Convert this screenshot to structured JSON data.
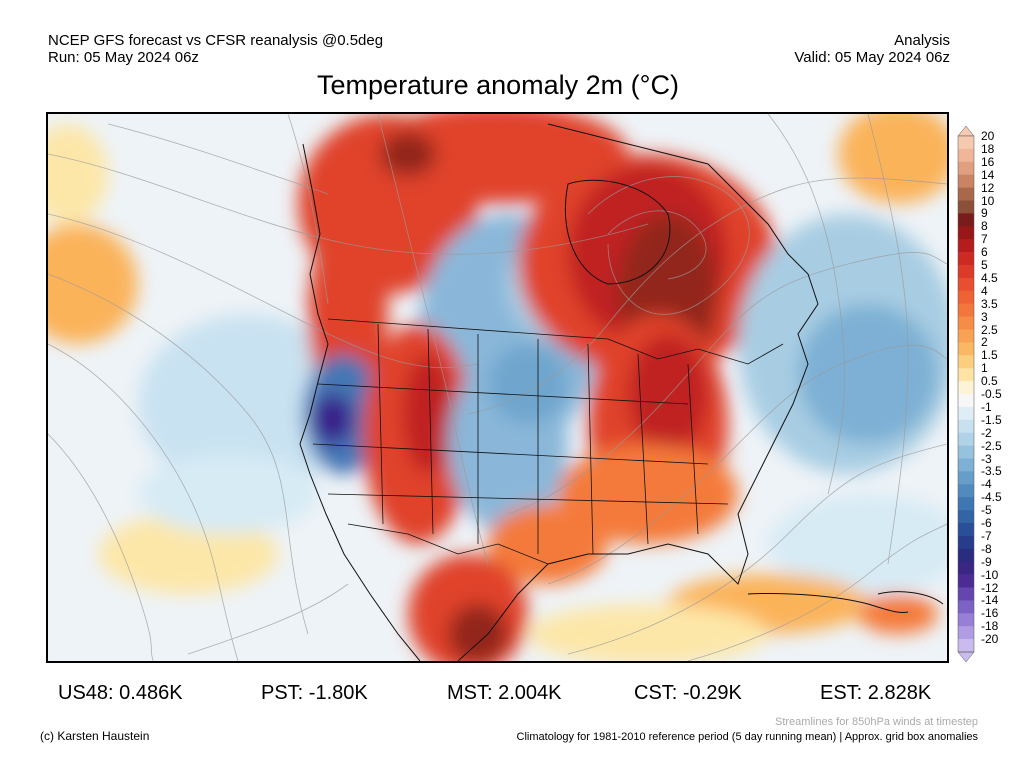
{
  "header": {
    "left_line1": "NCEP GFS forecast vs CFSR reanalysis @0.5deg",
    "left_line2": "Run: 05 May 2024 06z",
    "right_line1": "Analysis",
    "right_line2": "Valid: 05 May 2024 06z",
    "title": "Temperature anomaly 2m (°C)"
  },
  "map": {
    "region": "North America",
    "warm_colors": [
      "#fde7a8",
      "#fbb35a",
      "#f47a3a",
      "#e0432a",
      "#c02420",
      "#93251f",
      "#7c3f2a"
    ],
    "cool_colors": [
      "#d7ebf5",
      "#a8cde3",
      "#6fa5cd",
      "#4577b5",
      "#2a4596",
      "#3a1f8a"
    ]
  },
  "colorbar": {
    "levels": [
      {
        "label": "20",
        "color": "#f6c9b1"
      },
      {
        "label": "18",
        "color": "#efb69a"
      },
      {
        "label": "16",
        "color": "#e0a07f"
      },
      {
        "label": "14",
        "color": "#c98463"
      },
      {
        "label": "12",
        "color": "#a9684a"
      },
      {
        "label": "10",
        "color": "#8a5038"
      },
      {
        "label": "9",
        "color": "#7a1c1c"
      },
      {
        "label": "8",
        "color": "#981818"
      },
      {
        "label": "7",
        "color": "#b51d1c"
      },
      {
        "label": "6",
        "color": "#cc2a22"
      },
      {
        "label": "5",
        "color": "#dd3b2a"
      },
      {
        "label": "4.5",
        "color": "#e84e30"
      },
      {
        "label": "4",
        "color": "#ef6236"
      },
      {
        "label": "3.5",
        "color": "#f3763d"
      },
      {
        "label": "3",
        "color": "#f58c47"
      },
      {
        "label": "2.5",
        "color": "#f8a255"
      },
      {
        "label": "2",
        "color": "#fab865"
      },
      {
        "label": "1.5",
        "color": "#fcce7f"
      },
      {
        "label": "1",
        "color": "#fde3a4"
      },
      {
        "label": "0.5",
        "color": "#fdf4d8"
      },
      {
        "label": "-0.5",
        "color": "#f7f7f7"
      },
      {
        "label": "-1",
        "color": "#deedf6"
      },
      {
        "label": "-1.5",
        "color": "#c7e1f0"
      },
      {
        "label": "-2",
        "color": "#b0d3e8"
      },
      {
        "label": "-2.5",
        "color": "#97c2de"
      },
      {
        "label": "-3",
        "color": "#7db0d4"
      },
      {
        "label": "-3.5",
        "color": "#669ec9"
      },
      {
        "label": "-4",
        "color": "#518bbe"
      },
      {
        "label": "-4.5",
        "color": "#3f77b2"
      },
      {
        "label": "-5",
        "color": "#3264a6"
      },
      {
        "label": "-6",
        "color": "#2a4f98"
      },
      {
        "label": "-7",
        "color": "#273c8a"
      },
      {
        "label": "-8",
        "color": "#2a2c80"
      },
      {
        "label": "-9",
        "color": "#3a2683"
      },
      {
        "label": "-10",
        "color": "#4d2b94"
      },
      {
        "label": "-12",
        "color": "#6546b0"
      },
      {
        "label": "-14",
        "color": "#7d62c6"
      },
      {
        "label": "-16",
        "color": "#977fd6"
      },
      {
        "label": "-18",
        "color": "#b09ce3"
      },
      {
        "label": "-20",
        "color": "#cabbee"
      }
    ]
  },
  "stats": [
    {
      "label": "US48: 0.486K"
    },
    {
      "label": "PST: -1.80K"
    },
    {
      "label": "MST: 2.004K"
    },
    {
      "label": "CST: -0.29K"
    },
    {
      "label": "EST: 2.828K"
    }
  ],
  "footer": {
    "credit": "(c) Karsten Haustein",
    "streamline_note": "Streamlines for 850hPa winds at timestep",
    "climatology_note": "Climatology for 1981-2010 reference period (5 day running mean) | Approx. grid box anomalies"
  }
}
